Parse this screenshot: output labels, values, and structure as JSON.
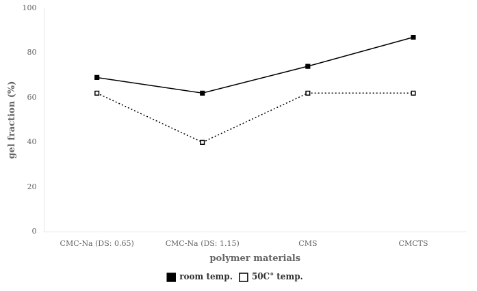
{
  "chart_data": {
    "type": "line",
    "categories": [
      "CMC-Na (DS: 0.65)",
      "CMC-Na (DS: 1.15)",
      "CMS",
      "CMCTS"
    ],
    "series": [
      {
        "name": "room temp.",
        "color": "#000000",
        "values": [
          69,
          62,
          74,
          87
        ],
        "line_style": "solid",
        "marker": "square"
      },
      {
        "name": "50C° temp.",
        "color": "#000000",
        "values": [
          62,
          40,
          62,
          62
        ],
        "line_style": "dotted",
        "marker": "square_open"
      }
    ],
    "xlabel": "polymer materials",
    "ylabel": "gel fraction (%)",
    "ylim": [
      0,
      100
    ],
    "yticks": [
      0,
      20,
      40,
      60,
      80,
      100
    ],
    "grid": false,
    "legend": "bottom"
  }
}
